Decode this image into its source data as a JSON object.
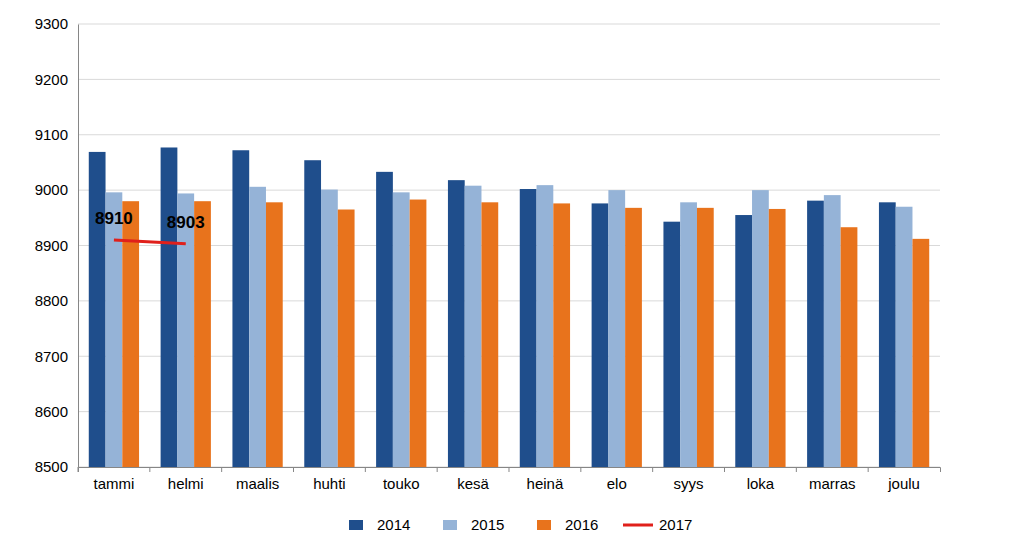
{
  "chart_data": {
    "type": "bar",
    "categories": [
      "tammi",
      "helmi",
      "maalis",
      "huhti",
      "touko",
      "kesä",
      "heinä",
      "elo",
      "syys",
      "loka",
      "marras",
      "joulu"
    ],
    "series": [
      {
        "name": "2014",
        "color": "#1f4e8c",
        "values": [
          9069,
          9077,
          9072,
          9054,
          9033,
          9018,
          9002,
          8976,
          8943,
          8955,
          8981,
          8978
        ]
      },
      {
        "name": "2015",
        "color": "#95b3d7",
        "values": [
          8996,
          8994,
          9006,
          9001,
          8996,
          9008,
          9009,
          9000,
          8978,
          9000,
          8991,
          8970
        ]
      },
      {
        "name": "2016",
        "color": "#e8731c",
        "values": [
          8980,
          8980,
          8978,
          8965,
          8983,
          8978,
          8976,
          8968,
          8968,
          8966,
          8933,
          8912
        ]
      },
      {
        "name": "2017",
        "color": "#e0201b",
        "type": "line",
        "data_labels": true,
        "values": [
          8910,
          8903,
          null,
          null,
          null,
          null,
          null,
          null,
          null,
          null,
          null,
          null
        ]
      }
    ],
    "ylim": [
      8500,
      9300
    ],
    "yticks": [
      8500,
      8600,
      8700,
      8800,
      8900,
      9000,
      9100,
      9200,
      9300
    ],
    "grid": true,
    "legend": "bottom"
  }
}
